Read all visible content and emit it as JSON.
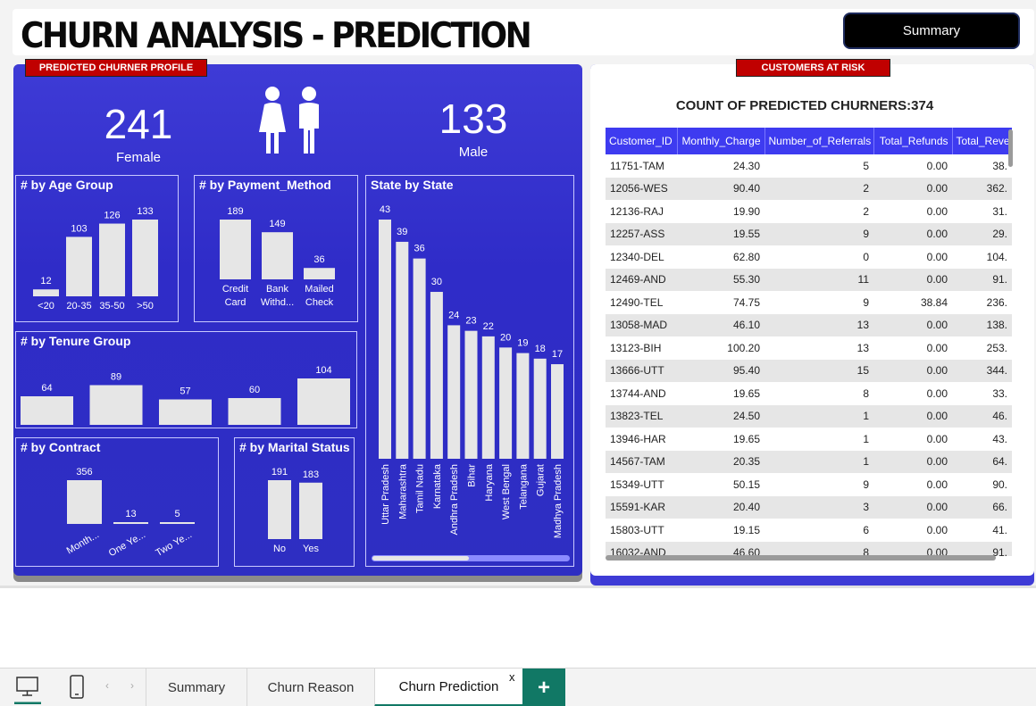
{
  "header": {
    "title": "CHURN ANALYSIS - PREDICTION",
    "summary_button": "Summary"
  },
  "profile": {
    "tag": "PREDICTED CHURNER PROFILE",
    "female_count": "241",
    "female_label": "Female",
    "male_count": "133",
    "male_label": "Male"
  },
  "charts": {
    "age": {
      "title": "# by Age Group",
      "categories": [
        "<20",
        "20-35",
        "35-50",
        ">50"
      ],
      "values": [
        12,
        103,
        126,
        133
      ]
    },
    "payment": {
      "title": "# by Payment_Method",
      "categories": [
        [
          "Credit",
          "Card"
        ],
        [
          "Bank",
          "Withd..."
        ],
        [
          "Mailed",
          "Check"
        ]
      ],
      "values": [
        189,
        149,
        36
      ]
    },
    "tenure": {
      "title": "# by Tenure Group",
      "values": [
        64,
        89,
        57,
        60,
        104
      ]
    },
    "contract": {
      "title": "# by Contract",
      "categories": [
        "Month...",
        "One Ye...",
        "Two Ye..."
      ],
      "values": [
        356,
        13,
        5
      ]
    },
    "marital": {
      "title": "# by Marital Status",
      "categories": [
        "No",
        "Yes"
      ],
      "values": [
        191,
        183
      ]
    },
    "state": {
      "title": "State by State",
      "categories": [
        "Uttar Pradesh",
        "Maharashtra",
        "Tamil Nadu",
        "Karnataka",
        "Andhra Pradesh",
        "Bihar",
        "Haryana",
        "West Bengal",
        "Telangana",
        "Gujarat",
        "Madhya Pradesh"
      ],
      "values": [
        43,
        39,
        36,
        30,
        24,
        23,
        22,
        20,
        19,
        18,
        17
      ]
    }
  },
  "risk": {
    "tag": "CUSTOMERS AT RISK",
    "count_title": "COUNT OF PREDICTED CHURNERS:374",
    "columns": [
      "Customer_ID",
      "Monthly_Charge",
      "Number_of_Referrals",
      "Total_Refunds",
      "Total_Revenu"
    ],
    "rows": [
      [
        "11751-TAM",
        "24.30",
        "5",
        "0.00",
        "38."
      ],
      [
        "12056-WES",
        "90.40",
        "2",
        "0.00",
        "362."
      ],
      [
        "12136-RAJ",
        "19.90",
        "2",
        "0.00",
        "31."
      ],
      [
        "12257-ASS",
        "19.55",
        "9",
        "0.00",
        "29."
      ],
      [
        "12340-DEL",
        "62.80",
        "0",
        "0.00",
        "104."
      ],
      [
        "12469-AND",
        "55.30",
        "11",
        "0.00",
        "91."
      ],
      [
        "12490-TEL",
        "74.75",
        "9",
        "38.84",
        "236."
      ],
      [
        "13058-MAD",
        "46.10",
        "13",
        "0.00",
        "138."
      ],
      [
        "13123-BIH",
        "100.20",
        "13",
        "0.00",
        "253."
      ],
      [
        "13666-UTT",
        "95.40",
        "15",
        "0.00",
        "344."
      ],
      [
        "13744-AND",
        "19.65",
        "8",
        "0.00",
        "33."
      ],
      [
        "13823-TEL",
        "24.50",
        "1",
        "0.00",
        "46."
      ],
      [
        "13946-HAR",
        "19.65",
        "1",
        "0.00",
        "43."
      ],
      [
        "14567-TAM",
        "20.35",
        "1",
        "0.00",
        "64."
      ],
      [
        "15349-UTT",
        "50.15",
        "9",
        "0.00",
        "90."
      ],
      [
        "15591-KAR",
        "20.40",
        "3",
        "0.00",
        "66."
      ],
      [
        "15803-UTT",
        "19.15",
        "6",
        "0.00",
        "41."
      ],
      [
        "16032-AND",
        "46.60",
        "8",
        "0.00",
        "91."
      ]
    ]
  },
  "tabs": {
    "items": [
      "Summary",
      "Churn Reason",
      "Churn Prediction"
    ],
    "close": "x",
    "add": "+"
  },
  "colors": {
    "panel": "#3e3bd6",
    "bar": "#e6e6e6",
    "tag": "#c00000",
    "header": "#3e3bf0",
    "accent": "#117865"
  }
}
